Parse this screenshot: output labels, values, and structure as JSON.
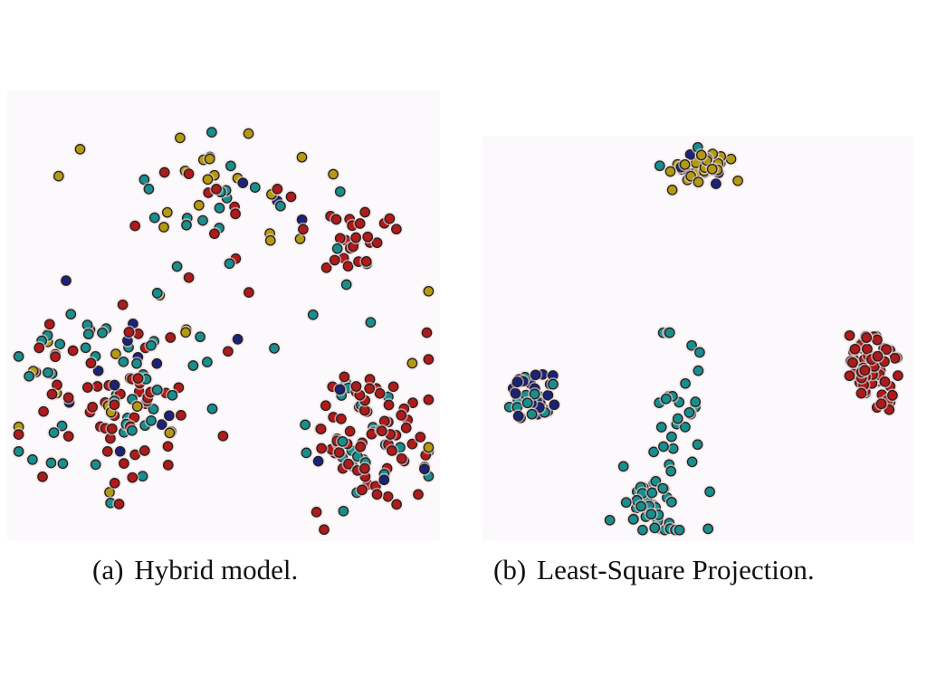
{
  "colors": {
    "yellow": "#b39a12",
    "teal": "#1a8d8d",
    "red": "#b01a1a",
    "navy": "#1a237a",
    "green": "#1d7a2a",
    "stroke": "#222222",
    "halo": "#f3d8d8"
  },
  "captions": {
    "a_label": "(a)",
    "a_text": "Hybrid model.",
    "b_label": "(b)",
    "b_text": "Least-Square Projection."
  },
  "chart_data": [
    {
      "type": "scatter",
      "title": "",
      "xlabel": "",
      "ylabel": "",
      "axes_visible": false,
      "grid": false,
      "xlim": [
        0,
        100
      ],
      "ylim": [
        0,
        100
      ],
      "groups": [
        {
          "cx": 50,
          "cy": 78,
          "sx": 12,
          "sy": 7,
          "n": 45,
          "mix": {
            "yellow": 0.4,
            "teal": 0.35,
            "red": 0.15,
            "navy": 0.1
          }
        },
        {
          "cx": 80,
          "cy": 66,
          "sx": 4,
          "sy": 5,
          "n": 28,
          "mix": {
            "red": 0.85,
            "teal": 0.15
          }
        },
        {
          "cx": 22,
          "cy": 30,
          "sx": 12,
          "sy": 10,
          "n": 120,
          "mix": {
            "red": 0.4,
            "teal": 0.38,
            "yellow": 0.12,
            "navy": 0.1
          }
        },
        {
          "cx": 84,
          "cy": 23,
          "sx": 7,
          "sy": 8,
          "n": 95,
          "mix": {
            "red": 0.68,
            "teal": 0.25,
            "navy": 0.07
          }
        },
        {
          "cx": 50,
          "cy": 45,
          "sx": 28,
          "sy": 22,
          "n": 30,
          "mix": {
            "red": 0.4,
            "teal": 0.3,
            "yellow": 0.2,
            "navy": 0.1
          }
        }
      ]
    },
    {
      "type": "scatter",
      "title": "",
      "xlabel": "",
      "ylabel": "",
      "axes_visible": false,
      "grid": false,
      "xlim": [
        0,
        100
      ],
      "ylim": [
        0,
        100
      ],
      "groups": [
        {
          "cx": 51,
          "cy": 94,
          "sx": 4,
          "sy": 2,
          "n": 35,
          "mix": {
            "yellow": 0.7,
            "teal": 0.15,
            "navy": 0.15
          }
        },
        {
          "cx": 10,
          "cy": 35,
          "sx": 3,
          "sy": 4,
          "n": 40,
          "mix": {
            "navy": 0.6,
            "teal": 0.38,
            "green": 0.02
          }
        },
        {
          "cx": 38,
          "cy": 6,
          "sx": 4,
          "sy": 4,
          "n": 35,
          "mix": {
            "teal": 1.0
          }
        },
        {
          "cx": 91,
          "cy": 42,
          "sx": 3,
          "sy": 5,
          "n": 75,
          "mix": {
            "red": 0.97,
            "teal": 0.03
          }
        },
        {
          "cx": 44,
          "cy": 30,
          "sx": 4,
          "sy": 14,
          "n": 35,
          "mix": {
            "teal": 1.0
          }
        }
      ]
    }
  ]
}
